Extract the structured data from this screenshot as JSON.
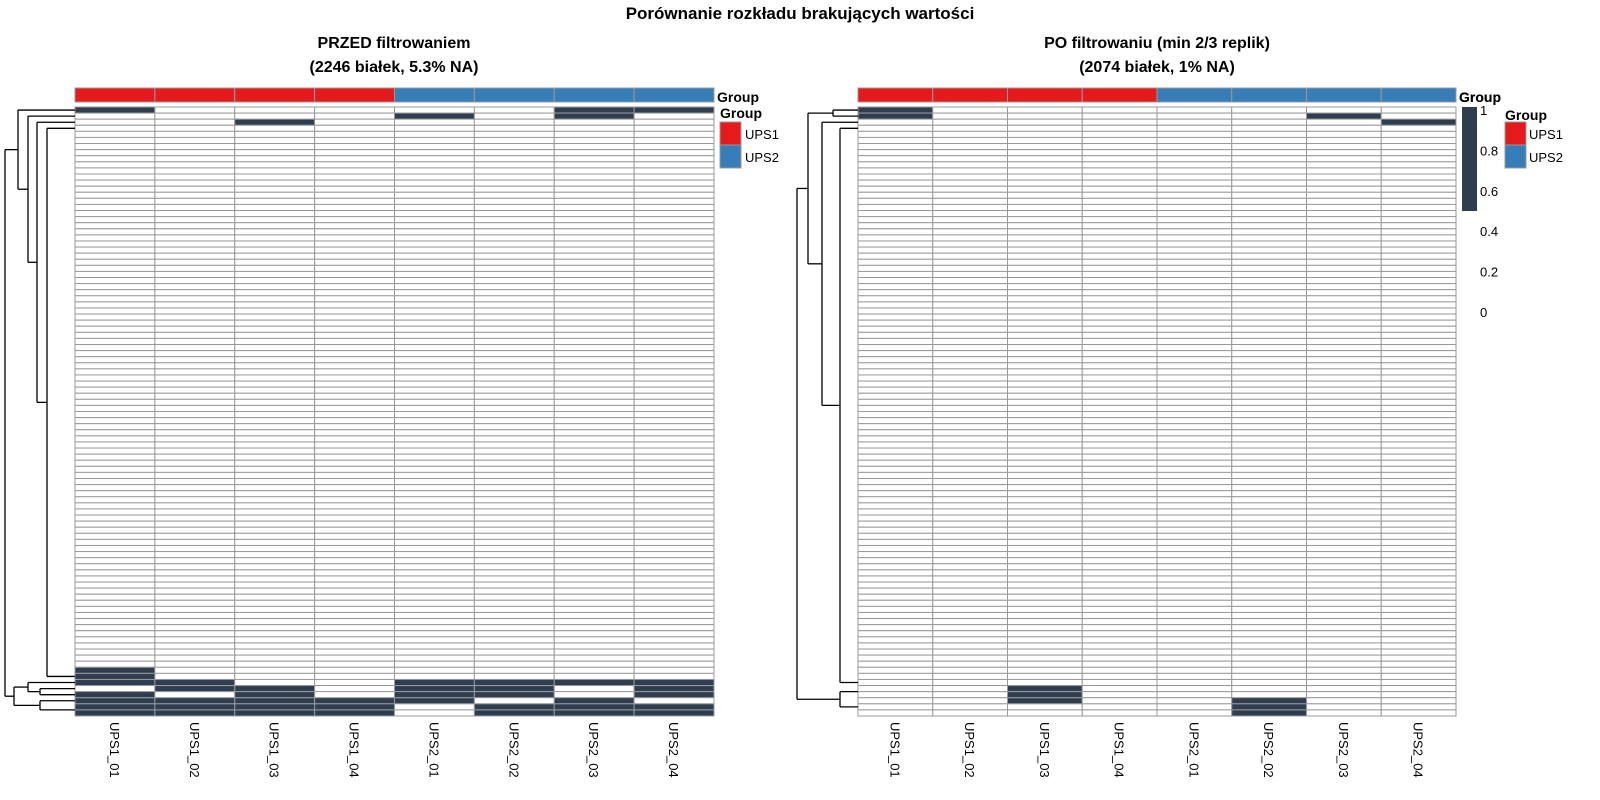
{
  "title": "Porównanie rozkładu brakujących wartości",
  "colors": {
    "na": "#2E3E50",
    "present": "#FFFFFF",
    "grid": "#999999",
    "UPS1": "#E41A1C",
    "UPS2": "#377EB8"
  },
  "chart_data": [
    {
      "type": "heatmap",
      "title_line1": "PRZED filtrowaniem",
      "title_line2": "(2246 białek, 5.3% NA)",
      "columns": [
        "UPS1_01",
        "UPS1_02",
        "UPS1_03",
        "UPS1_04",
        "UPS2_01",
        "UPS2_02",
        "UPS2_03",
        "UPS2_04"
      ],
      "column_groups": [
        "UPS1",
        "UPS1",
        "UPS1",
        "UPS1",
        "UPS2",
        "UPS2",
        "UPS2",
        "UPS2"
      ],
      "annotation_label": "Group",
      "n_rows_displayed": 100,
      "value_meaning": "1 = missing (NA), 0 = present",
      "na_cells_by_row": {
        "0": [
          0,
          6,
          7
        ],
        "1": [
          4,
          6
        ],
        "2": [
          2
        ],
        "92": [
          0
        ],
        "93": [
          0
        ],
        "94": [
          0,
          1,
          4,
          5,
          6,
          7
        ],
        "95": [
          1,
          2,
          4,
          5,
          7
        ],
        "96": [
          0,
          2,
          4,
          5,
          7
        ],
        "97": [
          0,
          1,
          2,
          3,
          4,
          6
        ],
        "98": [
          0,
          1,
          2,
          3,
          5,
          6,
          7
        ],
        "99": [
          0,
          1,
          2,
          3,
          5,
          6,
          7
        ]
      },
      "legend": {
        "title": "Group",
        "items": [
          "UPS1",
          "UPS2"
        ]
      }
    },
    {
      "type": "heatmap",
      "title_line1": "PO filtrowaniu (min 2/3 replik)",
      "title_line2": "(2074 białek, 1% NA)",
      "columns": [
        "UPS1_01",
        "UPS1_02",
        "UPS1_03",
        "UPS1_04",
        "UPS2_01",
        "UPS2_02",
        "UPS2_03",
        "UPS2_04"
      ],
      "column_groups": [
        "UPS1",
        "UPS1",
        "UPS1",
        "UPS1",
        "UPS2",
        "UPS2",
        "UPS2",
        "UPS2"
      ],
      "annotation_label": "Group",
      "n_rows_displayed": 100,
      "value_meaning": "1 = missing (NA), 0 = present",
      "na_cells_by_row": {
        "0": [
          0
        ],
        "1": [
          0,
          6
        ],
        "2": [
          7
        ],
        "95": [
          2
        ],
        "96": [
          2
        ],
        "97": [
          2,
          5
        ],
        "98": [
          5
        ],
        "99": [
          5
        ]
      },
      "colorbar": {
        "title": "Group",
        "ticks": [
          "1",
          "0.8",
          "0.6",
          "0.4",
          "0.2",
          "0"
        ],
        "range": [
          0,
          1
        ],
        "filled_range": [
          0.5,
          1
        ]
      },
      "legend": {
        "title": "Group",
        "items": [
          "UPS1",
          "UPS2"
        ]
      }
    }
  ]
}
